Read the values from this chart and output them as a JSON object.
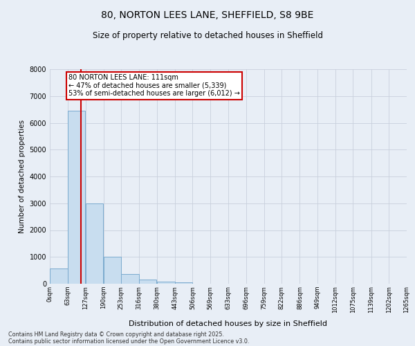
{
  "title_line1": "80, NORTON LEES LANE, SHEFFIELD, S8 9BE",
  "title_line2": "Size of property relative to detached houses in Sheffield",
  "xlabel": "Distribution of detached houses by size in Sheffield",
  "ylabel": "Number of detached properties",
  "bar_color": "#c8ddef",
  "bar_edge_color": "#7aaace",
  "grid_color": "#c8d0dc",
  "background_color": "#e8eef6",
  "fig_background_color": "#e8eef6",
  "vline_color": "#cc0000",
  "vline_x": 111,
  "annotation_text": "80 NORTON LEES LANE: 111sqm\n← 47% of detached houses are smaller (5,339)\n53% of semi-detached houses are larger (6,012) →",
  "annotation_box_color": "#ffffff",
  "annotation_box_edge_color": "#cc0000",
  "bin_edges": [
    0,
    63,
    127,
    190,
    253,
    316,
    380,
    443,
    506,
    569,
    633,
    696,
    759,
    822,
    886,
    949,
    1012,
    1075,
    1139,
    1202,
    1265
  ],
  "bar_heights": [
    580,
    6450,
    3000,
    1000,
    370,
    155,
    90,
    60,
    0,
    0,
    0,
    0,
    0,
    0,
    0,
    0,
    0,
    0,
    0,
    0
  ],
  "ylim": [
    0,
    8000
  ],
  "yticks": [
    0,
    1000,
    2000,
    3000,
    4000,
    5000,
    6000,
    7000,
    8000
  ],
  "footnote1": "Contains HM Land Registry data © Crown copyright and database right 2025.",
  "footnote2": "Contains public sector information licensed under the Open Government Licence v3.0."
}
